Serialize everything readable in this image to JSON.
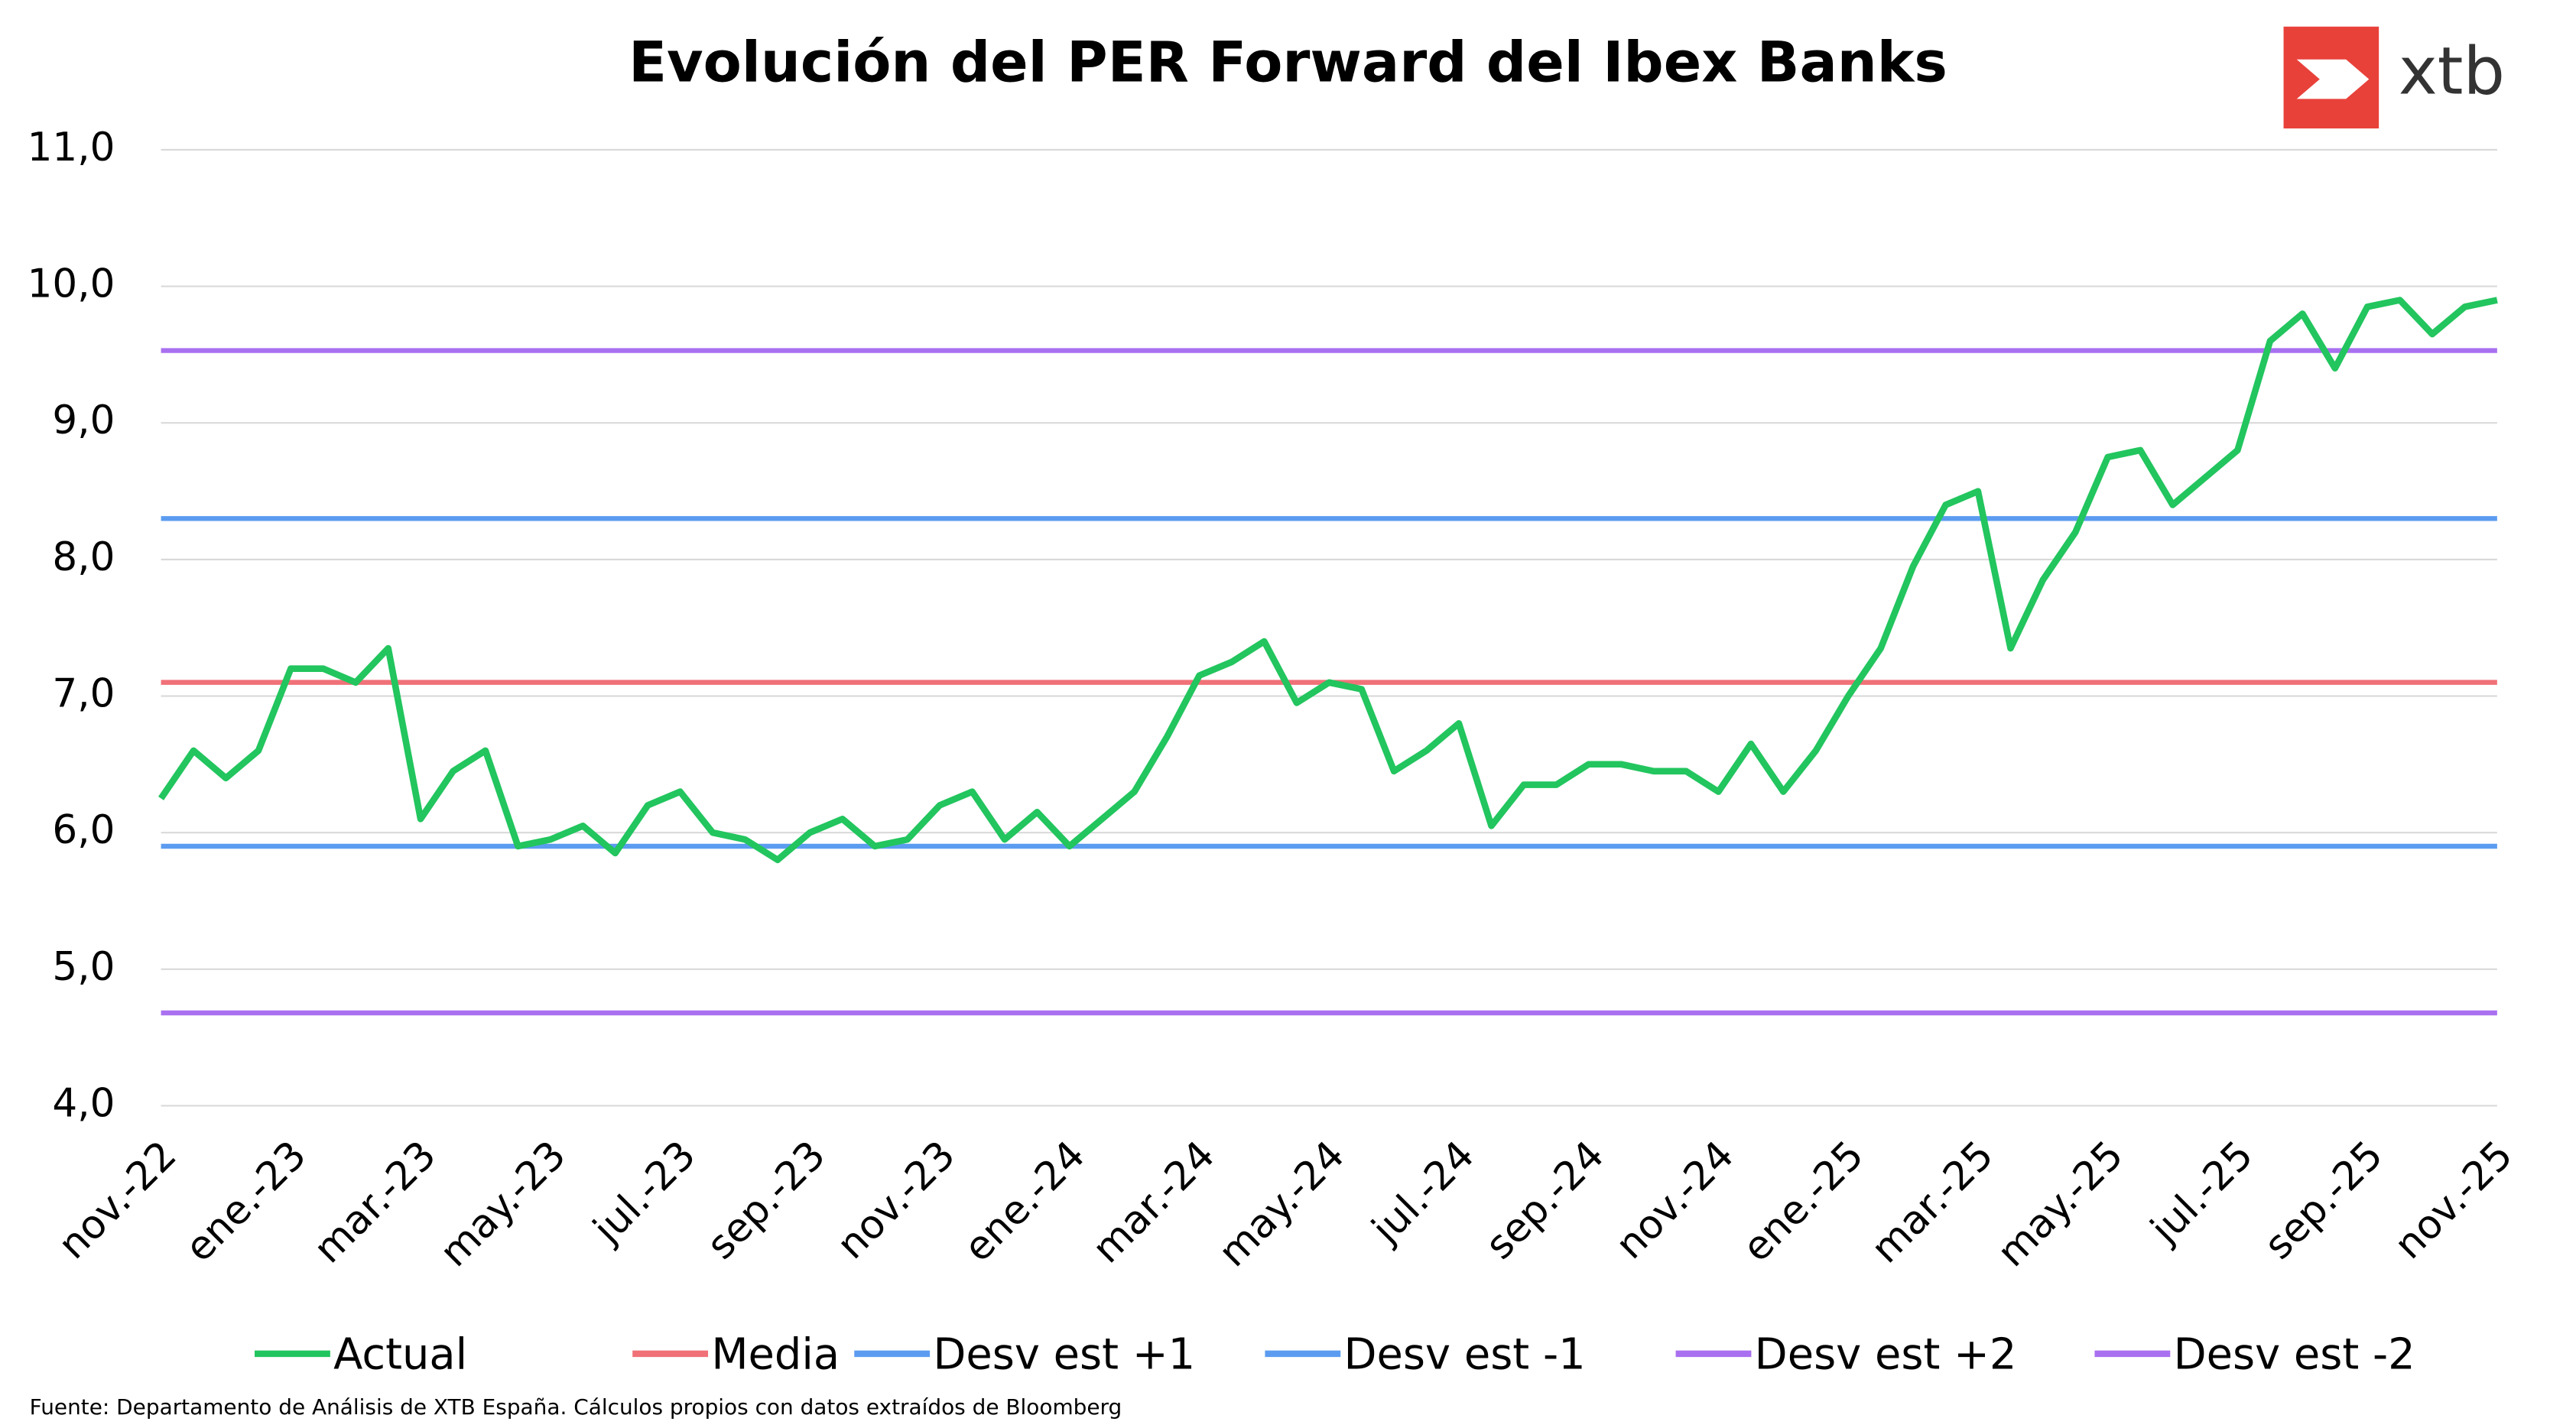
{
  "chart_data": {
    "type": "line",
    "title": "Evolución del PER Forward del Ibex Banks",
    "logo": "xtb",
    "source": "Fuente: Departamento de Análisis de XTB España. Cálculos propios con datos extraídos de Bloomberg",
    "categories": [
      "nov.-22",
      null,
      null,
      null,
      "ene.-23",
      null,
      null,
      null,
      "mar.-23",
      null,
      null,
      null,
      "may.-23",
      null,
      null,
      null,
      "jul.-23",
      null,
      null,
      null,
      "sep.-23",
      null,
      null,
      null,
      "nov.-23",
      null,
      null,
      null,
      "ene.-24",
      null,
      null,
      null,
      "mar.-24",
      null,
      null,
      null,
      "may.-24",
      null,
      null,
      null,
      "jul.-24",
      null,
      null,
      null,
      "sep.-24",
      null,
      null,
      null,
      "nov.-24",
      null,
      null,
      null,
      "ene.-25",
      null,
      null,
      null,
      "mar.-25",
      null,
      null,
      null,
      "may.-25",
      null,
      null,
      null,
      "jul.-25",
      null,
      null,
      null,
      "sep.-25",
      null,
      null,
      null,
      "nov.-25"
    ],
    "series": [
      {
        "name": "Actual",
        "color": "#22c55e",
        "values": [
          6.25,
          6.6,
          6.4,
          6.6,
          7.2,
          7.2,
          7.1,
          7.35,
          6.1,
          6.45,
          6.6,
          5.9,
          5.95,
          6.05,
          5.85,
          6.2,
          6.3,
          6.0,
          5.95,
          5.8,
          6.0,
          6.1,
          5.9,
          5.95,
          6.2,
          6.3,
          5.95,
          6.15,
          5.9,
          6.1,
          6.3,
          6.7,
          7.15,
          7.25,
          7.4,
          6.95,
          7.1,
          7.05,
          6.45,
          6.6,
          6.8,
          6.05,
          6.35,
          6.35,
          6.5,
          6.5,
          6.45,
          6.45,
          6.3,
          6.65,
          6.3,
          6.6,
          7.0,
          7.35,
          7.95,
          8.4,
          8.5,
          7.35,
          7.85,
          8.2,
          8.75,
          8.8,
          8.4,
          8.6,
          8.8,
          9.6,
          9.8,
          9.4,
          9.85,
          9.9,
          9.65,
          9.85,
          9.9
        ]
      }
    ],
    "reference_lines": [
      {
        "name": "Media",
        "color": "#f07178",
        "value": 7.1
      },
      {
        "name": "Desv est +1",
        "color": "#5b9cf0",
        "value": 8.3
      },
      {
        "name": "Desv est -1",
        "color": "#5b9cf0",
        "value": 5.9
      },
      {
        "name": "Desv est +2",
        "color": "#a970f0",
        "value": 9.53
      },
      {
        "name": "Desv est -2",
        "color": "#a970f0",
        "value": 4.68
      }
    ],
    "ylim": [
      4,
      11
    ],
    "yticks": [
      {
        "value": 4,
        "label": "4,0"
      },
      {
        "value": 5,
        "label": "5,0"
      },
      {
        "value": 6,
        "label": "6,0"
      },
      {
        "value": 7,
        "label": "7,0"
      },
      {
        "value": 8,
        "label": "8,0"
      },
      {
        "value": 9,
        "label": "9,0"
      },
      {
        "value": 10,
        "label": "10,0"
      },
      {
        "value": 11,
        "label": "11,0"
      }
    ],
    "grid": true
  }
}
